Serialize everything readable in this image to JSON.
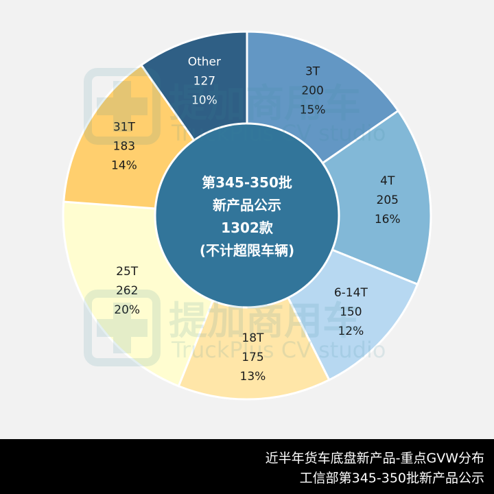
{
  "chart_data": {
    "type": "pie",
    "style": "donut",
    "center_label": [
      "第345-350批",
      "新产品公示",
      "1302款",
      "(不计超限车辆)"
    ],
    "slices": [
      {
        "label": "3T",
        "value": 200,
        "percent": "15%",
        "color": "#6397c4",
        "text_color": "#1a1a1a"
      },
      {
        "label": "4T",
        "value": 205,
        "percent": "16%",
        "color": "#82b8d7",
        "text_color": "#1a1a1a"
      },
      {
        "label": "6-14T",
        "value": 150,
        "percent": "12%",
        "color": "#b7d8f1",
        "text_color": "#1a1a1a"
      },
      {
        "label": "18T",
        "value": 175,
        "percent": "13%",
        "color": "#ffe6a8",
        "text_color": "#1a1a1a"
      },
      {
        "label": "25T",
        "value": 262,
        "percent": "20%",
        "color": "#fffdd0",
        "text_color": "#1a1a1a"
      },
      {
        "label": "31T",
        "value": 183,
        "percent": "14%",
        "color": "#ffcf6e",
        "text_color": "#1a1a1a"
      },
      {
        "label": "Other",
        "value": 127,
        "percent": "10%",
        "color": "#2f5f85",
        "text_color": "#ffffff"
      }
    ],
    "center_color": "#32759a"
  },
  "watermark": {
    "name": "提加商用车",
    "subtitle": "TruckPlus CV studio",
    "color": "#3a8a9a"
  },
  "footer": {
    "line1": "近半年货车底盘新产品-重点GVW分布",
    "line2": "工信部第345-350批新产品公示"
  }
}
